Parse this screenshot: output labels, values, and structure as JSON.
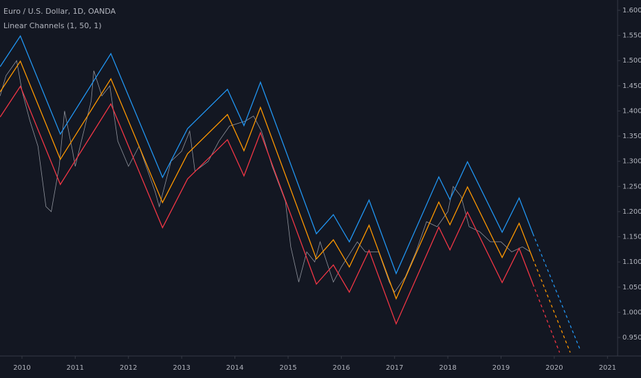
{
  "chart_data": {
    "type": "line",
    "title": "Euro / U.S. Dollar, 1D, OANDA",
    "subtitle": "Linear Channels (1, 50, 1)",
    "xlim": [
      2009.587,
      2021.19
    ],
    "xticks": [
      2010,
      2011,
      2012,
      2013,
      2014,
      2015,
      2016,
      2017,
      2018,
      2019,
      2020,
      2021
    ],
    "ylim": [
      0.9131,
      1.6205
    ],
    "yticks": [
      {
        "value": 0.95,
        "label": "0.9500"
      },
      {
        "value": 1.0,
        "label": "1.0000"
      },
      {
        "value": 1.05,
        "label": "1.0500"
      },
      {
        "value": 1.1,
        "label": "1.1000"
      },
      {
        "value": 1.15,
        "label": "1.1500"
      },
      {
        "value": 1.2,
        "label": "1.2000"
      },
      {
        "value": 1.25,
        "label": "1.2500"
      },
      {
        "value": 1.3,
        "label": "1.3000"
      },
      {
        "value": 1.35,
        "label": "1.3500"
      },
      {
        "value": 1.4,
        "label": "1.4000"
      },
      {
        "value": 1.45,
        "label": "1.4500"
      },
      {
        "value": 1.5,
        "label": "1.5000"
      },
      {
        "value": 1.55,
        "label": "1.5500"
      },
      {
        "value": 1.6,
        "label": "1.6000"
      }
    ],
    "grid": false,
    "series": [
      {
        "color": "#b2b5be",
        "dashed": false,
        "x": [
          2009.59,
          2009.7,
          2009.9,
          2010.0,
          2010.15,
          2010.3,
          2010.45,
          2010.55,
          2010.7,
          2010.8,
          2010.95,
          2011.0,
          2011.3,
          2011.35,
          2011.5,
          2011.65,
          2011.8,
          2012.0,
          2012.2,
          2012.5,
          2012.58,
          2012.8,
          2013.0,
          2013.15,
          2013.25,
          2013.5,
          2013.7,
          2013.9,
          2014.2,
          2014.35,
          2014.5,
          2014.7,
          2014.95,
          2015.05,
          2015.2,
          2015.35,
          2015.5,
          2015.6,
          2015.85,
          2016.0,
          2016.3,
          2016.45,
          2016.7,
          2016.9,
          2017.0,
          2017.2,
          2017.4,
          2017.6,
          2017.8,
          2018.0,
          2018.1,
          2018.25,
          2018.4,
          2018.6,
          2018.8,
          2019.0,
          2019.2,
          2019.4,
          2019.55
        ],
        "values": [
          1.43,
          1.47,
          1.5,
          1.44,
          1.38,
          1.33,
          1.21,
          1.2,
          1.29,
          1.4,
          1.32,
          1.29,
          1.42,
          1.48,
          1.43,
          1.45,
          1.34,
          1.29,
          1.33,
          1.24,
          1.21,
          1.3,
          1.32,
          1.36,
          1.28,
          1.3,
          1.34,
          1.37,
          1.38,
          1.39,
          1.36,
          1.29,
          1.22,
          1.13,
          1.06,
          1.12,
          1.1,
          1.14,
          1.06,
          1.09,
          1.14,
          1.12,
          1.12,
          1.06,
          1.04,
          1.07,
          1.12,
          1.18,
          1.17,
          1.2,
          1.25,
          1.23,
          1.17,
          1.16,
          1.14,
          1.14,
          1.12,
          1.13,
          1.12
        ]
      },
      {
        "color": "#2196f3",
        "dashed": false,
        "x": [
          2009.59,
          2009.97,
          2010.72,
          2011.67,
          2012.64,
          2013.11,
          2013.86,
          2014.17,
          2014.48,
          2015.53,
          2015.85,
          2016.15,
          2016.52,
          2017.03,
          2017.83,
          2018.04,
          2018.37,
          2019.02,
          2019.34,
          2019.6
        ],
        "values": [
          1.488,
          1.549,
          1.354,
          1.514,
          1.268,
          1.365,
          1.443,
          1.371,
          1.457,
          1.156,
          1.194,
          1.14,
          1.223,
          1.077,
          1.269,
          1.224,
          1.299,
          1.159,
          1.227,
          1.156
        ]
      },
      {
        "color": "#ff9800",
        "dashed": false,
        "x": [
          2009.59,
          2009.97,
          2010.72,
          2011.67,
          2012.64,
          2013.11,
          2013.86,
          2014.17,
          2014.48,
          2015.53,
          2015.85,
          2016.15,
          2016.52,
          2017.03,
          2017.83,
          2018.04,
          2018.37,
          2019.02,
          2019.34,
          2019.6
        ],
        "values": [
          1.438,
          1.499,
          1.304,
          1.464,
          1.218,
          1.315,
          1.393,
          1.321,
          1.407,
          1.106,
          1.144,
          1.09,
          1.173,
          1.027,
          1.219,
          1.174,
          1.249,
          1.109,
          1.177,
          1.106
        ]
      },
      {
        "color": "#f23645",
        "dashed": false,
        "x": [
          2009.59,
          2009.97,
          2010.72,
          2011.67,
          2012.64,
          2013.11,
          2013.86,
          2014.17,
          2014.48,
          2015.53,
          2015.85,
          2016.15,
          2016.52,
          2017.03,
          2017.83,
          2018.04,
          2018.37,
          2019.02,
          2019.34,
          2019.6
        ],
        "values": [
          1.388,
          1.449,
          1.254,
          1.414,
          1.168,
          1.265,
          1.343,
          1.271,
          1.357,
          1.056,
          1.094,
          1.04,
          1.123,
          0.977,
          1.169,
          1.124,
          1.199,
          1.059,
          1.127,
          1.056
        ]
      },
      {
        "color": "#2196f3",
        "dashed": true,
        "x": [
          2019.6,
          2020.48
        ],
        "values": [
          1.156,
          0.927
        ]
      },
      {
        "color": "#ff9800",
        "dashed": true,
        "x": [
          2019.6,
          2020.3
        ],
        "values": [
          1.106,
          0.92
        ]
      },
      {
        "color": "#f23645",
        "dashed": true,
        "x": [
          2019.6,
          2020.1
        ],
        "values": [
          1.056,
          0.92
        ]
      }
    ]
  }
}
